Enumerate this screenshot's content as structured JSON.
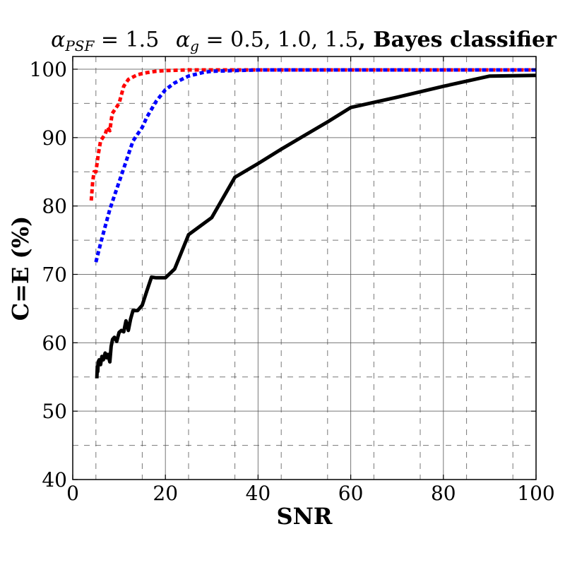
{
  "chart_data": {
    "type": "line",
    "title": {
      "psf_symbol": "α",
      "psf_sub": "PSF",
      "psf_value": " = 1.5",
      "g_symbol": "α",
      "g_sub": "g",
      "g_value": " = 0.5, 1.0, 1.5",
      "suffix": ", Bayes classifier"
    },
    "xlabel": "SNR",
    "ylabel": "C=E (%)",
    "xlim": [
      0,
      100
    ],
    "ylim": [
      40,
      102
    ],
    "xticks": [
      0,
      20,
      40,
      60,
      80,
      100
    ],
    "yticks": [
      40,
      50,
      60,
      70,
      80,
      90,
      100
    ],
    "x_minor_grid": [
      5,
      15,
      25,
      35,
      45,
      55,
      65,
      75,
      85,
      95
    ],
    "y_minor_grid": [
      45,
      55,
      65,
      75,
      85,
      95
    ],
    "grid": true,
    "series": [
      {
        "name": "alpha_g = 1.5",
        "color": "#ff0000",
        "style": "dashed",
        "x": [
          4,
          4.3,
          4.6,
          5,
          5.5,
          6,
          6.5,
          7,
          7.5,
          8,
          8.5,
          9,
          10,
          11,
          12,
          14,
          16,
          18,
          20,
          25,
          30,
          40,
          60,
          80,
          100
        ],
        "y": [
          80.8,
          83.5,
          85,
          85,
          87.5,
          89.5,
          90,
          90.5,
          91.5,
          91,
          93.5,
          94,
          95,
          97.5,
          98.5,
          99.2,
          99.5,
          99.7,
          99.8,
          99.9,
          99.9,
          99.9,
          99.9,
          99.9,
          99.9
        ]
      },
      {
        "name": "alpha_g = 1.0",
        "color": "#0000ff",
        "style": "dashed",
        "x": [
          5,
          6,
          7,
          8,
          9,
          10,
          11,
          12,
          13,
          14,
          15,
          16,
          18,
          20,
          22,
          25,
          28,
          30,
          35,
          40,
          60,
          80,
          100
        ],
        "y": [
          71.8,
          74.5,
          77,
          79.5,
          81.5,
          83.5,
          85.5,
          87.5,
          89.5,
          90.5,
          91.5,
          93,
          95.3,
          97,
          98,
          99,
          99.5,
          99.7,
          99.8,
          99.9,
          99.9,
          99.9,
          99.9
        ]
      },
      {
        "name": "alpha_g = 0.5",
        "color": "#000000",
        "style": "solid",
        "x": [
          5.2,
          5.3,
          5.4,
          5.5,
          5.7,
          6,
          6.3,
          6.6,
          7,
          7.3,
          7.6,
          8,
          8.3,
          8.6,
          9,
          9.5,
          10,
          10.5,
          11,
          11.5,
          12,
          12.5,
          13,
          14,
          15,
          16,
          17,
          18,
          20,
          22,
          25,
          30,
          35,
          40,
          45,
          50,
          55,
          60,
          70,
          80,
          90,
          100
        ],
        "y": [
          54.8,
          56.5,
          55.8,
          57.2,
          57.5,
          56.8,
          58,
          57.5,
          58.5,
          57.8,
          58.3,
          57.2,
          59.5,
          60.5,
          60.8,
          60.2,
          61.5,
          61.8,
          61.6,
          63.2,
          61.8,
          63.5,
          64.7,
          64.7,
          65.5,
          67.6,
          69.6,
          69.5,
          69.5,
          70.8,
          75.8,
          78.3,
          84.2,
          86.2,
          88.3,
          90.3,
          92.3,
          94.4,
          95.9,
          97.5,
          99.0,
          99.1
        ]
      }
    ]
  }
}
